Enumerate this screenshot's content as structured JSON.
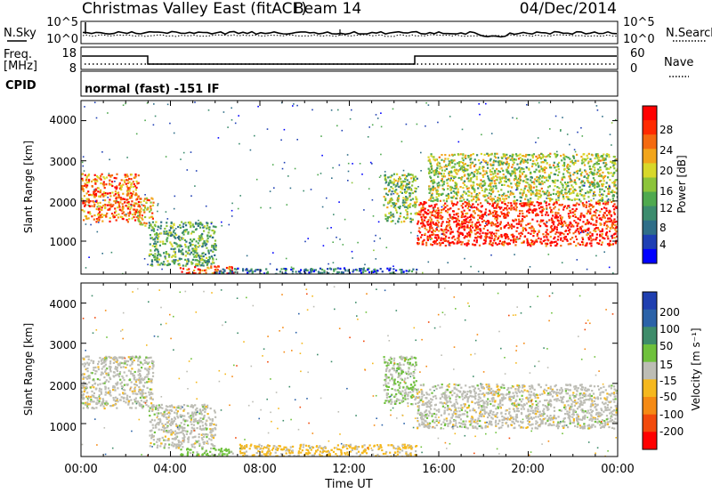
{
  "header": {
    "title": "Christmas Valley East (fitACF)",
    "beam": "Beam 14",
    "date": "04/Dec/2014"
  },
  "noise_panel": {
    "left_label": "N.Sky",
    "right_label": "N.Search",
    "left_ticks": [
      "10^5",
      "10^0"
    ],
    "right_ticks": [
      "10^5",
      "10^0"
    ]
  },
  "freq_panel": {
    "left_label_1": "Freq.",
    "left_label_2": "[MHz]",
    "right_label": "Nave",
    "left_ticks": [
      "18",
      "8"
    ],
    "right_ticks": [
      "60",
      "0"
    ]
  },
  "cpid_panel": {
    "label": "CPID",
    "mode": "normal (fast) -151 IF"
  },
  "power_colorbar": {
    "label": "Power [dB]",
    "ticks": [
      "28",
      "24",
      "20",
      "16",
      "12",
      "8",
      "4"
    ],
    "colors": [
      "#0000ff",
      "#1e3fb4",
      "#2f6e88",
      "#3c8c6e",
      "#4fa94f",
      "#8cc43a",
      "#d8d82a",
      "#f2a51b",
      "#f46a10",
      "#ff2a00",
      "#ff0000"
    ]
  },
  "velocity_colorbar": {
    "label": "Velocity [m s⁻¹]",
    "ticks": [
      "200",
      "100",
      "50",
      "15",
      "-15",
      "-50",
      "-100",
      "-200"
    ],
    "colors": [
      "#1f3fb0",
      "#2b62a8",
      "#3e8c6a",
      "#6fc13c",
      "#bdbdb5",
      "#f5b81e",
      "#f58a14",
      "#f24a0c",
      "#ff0000"
    ]
  },
  "axes": {
    "ylabel": "Slant Range [km]",
    "yticks": [
      "4000",
      "3000",
      "2000",
      "1000"
    ],
    "xticks": [
      "00:00",
      "04:00",
      "08:00",
      "12:00",
      "16:00",
      "20:00",
      "00:00"
    ],
    "xlabel": "Time UT"
  },
  "chart_data": [
    {
      "type": "heatmap",
      "title": "Power [dB]",
      "xlabel": "Time UT",
      "ylabel": "Slant Range [km]",
      "xlim": [
        0,
        24
      ],
      "ylim": [
        180,
        4500
      ],
      "zlim": [
        0,
        30
      ],
      "features": [
        {
          "t": [
            0.0,
            2.6
          ],
          "range": [
            1500,
            2700
          ],
          "dB": 24
        },
        {
          "t": [
            2.5,
            3.2
          ],
          "range": [
            1400,
            2100
          ],
          "dB": 20
        },
        {
          "t": [
            3.0,
            6.0
          ],
          "range": [
            400,
            1500
          ],
          "dB": 12
        },
        {
          "t": [
            4.4,
            6.8
          ],
          "range": [
            200,
            400
          ],
          "dB": 26
        },
        {
          "t": [
            6.0,
            15.0
          ],
          "range": [
            180,
            350
          ],
          "dB": 6
        },
        {
          "t": [
            13.5,
            15.0
          ],
          "range": [
            1500,
            2700
          ],
          "dB": 14
        },
        {
          "t": [
            15.0,
            24.0
          ],
          "range": [
            900,
            2000
          ],
          "dB": 28
        },
        {
          "t": [
            15.5,
            24.0
          ],
          "range": [
            2000,
            3200
          ],
          "dB": 16
        }
      ]
    },
    {
      "type": "heatmap",
      "title": "Velocity [m s⁻¹]",
      "xlabel": "Time UT",
      "ylabel": "Slant Range [km]",
      "xlim": [
        0,
        24
      ],
      "ylim": [
        180,
        4500
      ],
      "zlim": [
        -200,
        200
      ],
      "features": [
        {
          "t": [
            0.0,
            3.2
          ],
          "range": [
            1400,
            2700
          ],
          "velocity": 0
        },
        {
          "t": [
            3.0,
            6.0
          ],
          "range": [
            400,
            1500
          ],
          "velocity": 0
        },
        {
          "t": [
            4.4,
            6.8
          ],
          "range": [
            200,
            400
          ],
          "velocity": 40
        },
        {
          "t": [
            7.0,
            15.0
          ],
          "range": [
            180,
            500
          ],
          "velocity": -40
        },
        {
          "t": [
            13.5,
            15.0
          ],
          "range": [
            1500,
            2700
          ],
          "velocity": 30
        },
        {
          "t": [
            15.0,
            24.0
          ],
          "range": [
            900,
            2000
          ],
          "velocity": 0
        }
      ]
    }
  ]
}
